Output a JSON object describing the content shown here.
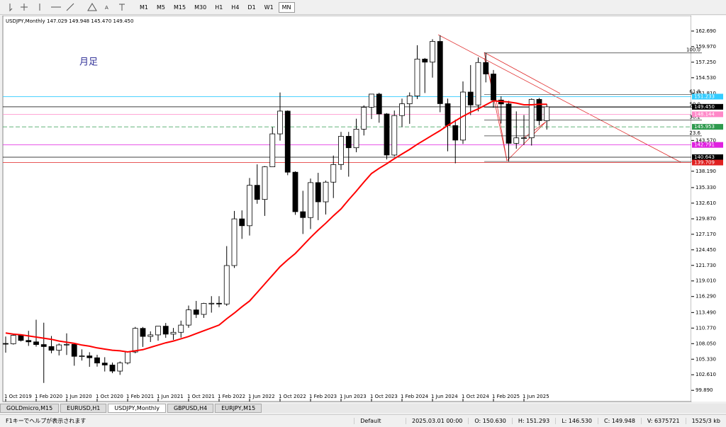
{
  "toolbar": {
    "timeframes": [
      "M1",
      "M5",
      "M15",
      "M30",
      "H1",
      "H4",
      "D1",
      "W1",
      "MN"
    ],
    "active": 8
  },
  "chart_data": {
    "type": "candlestick",
    "title": "USDJPY,Monthly",
    "header_values": "147.029 149.948 145.470 149.450",
    "annotation": "月足",
    "categories": [
      "1 Oct 2019",
      null,
      null,
      null,
      "1 Feb 2020",
      null,
      null,
      null,
      "1 Jun 2020",
      null,
      null,
      null,
      "1 Oct 2020",
      null,
      null,
      null,
      "1 Feb 2021",
      null,
      null,
      null,
      "1 Jun 2021",
      null,
      null,
      null,
      "1 Oct 2021",
      null,
      null,
      null,
      "1 Feb 2022",
      null,
      null,
      null,
      "1 Jun 2022",
      null,
      null,
      null,
      "1 Oct 2022",
      null,
      null,
      null,
      "1 Feb 2023",
      null,
      null,
      null,
      "1 Jun 2023",
      null,
      null,
      null,
      "1 Oct 2023",
      null,
      null,
      null,
      "1 Feb 2024",
      null,
      null,
      null,
      "1 Jun 2024",
      null,
      null,
      null,
      "1 Oct 2024",
      null,
      null,
      null,
      "1 Feb 2025",
      null,
      null,
      null,
      "1 Jun 2025",
      null,
      null,
      null
    ],
    "open": [
      108.08,
      108.03,
      109.5,
      108.61,
      108.36,
      107.89,
      107.54,
      106.89,
      107.83,
      107.93,
      105.83,
      105.91,
      105.58,
      104.66,
      104.31,
      103.25,
      104.68,
      106.59,
      110.72,
      109.31,
      109.58,
      111.1,
      109.71,
      110.03,
      111.29,
      113.95,
      113.16,
      115.08,
      115.11,
      114.98,
      121.7,
      129.86,
      128.66,
      135.73,
      133.26,
      138.96,
      144.72,
      148.7,
      138.02,
      131.11,
      130.09,
      136.2,
      132.84,
      136.28,
      139.35,
      144.3,
      142.29,
      145.54,
      149.37,
      151.67,
      148.2,
      141.02,
      147.92,
      149.98,
      151.35,
      157.8,
      157.26,
      160.88,
      150.0,
      146.17,
      143.63,
      152.03,
      149.77,
      157.2,
      155.19,
      150.63,
      149.95,
      143.07,
      144.02,
      144.03,
      150.75,
      147.03
    ],
    "high": [
      109.29,
      109.73,
      109.7,
      110.29,
      112.23,
      111.71,
      109.38,
      108.08,
      109.85,
      107.96,
      107.05,
      106.55,
      106.11,
      105.68,
      104.74,
      104.94,
      106.69,
      110.97,
      110.97,
      110.2,
      111.12,
      111.66,
      110.8,
      112.07,
      114.7,
      115.52,
      115.19,
      116.35,
      116.34,
      125.1,
      131.25,
      131.35,
      137.0,
      139.39,
      139.08,
      145.9,
      151.95,
      148.82,
      138.18,
      134.77,
      136.91,
      137.91,
      136.56,
      140.93,
      145.07,
      145.07,
      147.37,
      149.71,
      151.72,
      151.91,
      148.35,
      148.8,
      150.89,
      151.97,
      160.22,
      157.99,
      161.27,
      161.95,
      150.89,
      147.21,
      153.88,
      156.75,
      158.08,
      158.87,
      155.89,
      151.29,
      150.49,
      148.65,
      148.03,
      150.92,
      151.0,
      149.95
    ],
    "low": [
      106.48,
      107.89,
      108.43,
      107.65,
      107.52,
      101.18,
      106.36,
      105.99,
      106.07,
      104.19,
      105.1,
      104.0,
      104.03,
      103.18,
      102.88,
      102.59,
      104.41,
      106.36,
      107.48,
      108.34,
      108.57,
      109.06,
      108.72,
      109.11,
      110.82,
      112.53,
      112.56,
      113.47,
      114.41,
      114.65,
      121.28,
      126.36,
      126.94,
      132.5,
      130.39,
      138.93,
      143.53,
      137.5,
      130.57,
      127.22,
      128.08,
      129.64,
      130.63,
      133.5,
      138.43,
      137.24,
      141.51,
      144.44,
      147.31,
      146.67,
      140.25,
      140.8,
      145.9,
      146.48,
      150.81,
      151.86,
      154.55,
      148.51,
      141.68,
      139.58,
      142.97,
      148.01,
      148.65,
      153.72,
      149.3,
      146.53,
      139.89,
      142.12,
      142.8,
      142.68,
      146.22,
      145.47
    ],
    "close": [
      108.03,
      109.5,
      108.61,
      108.36,
      107.89,
      107.54,
      106.89,
      107.83,
      107.93,
      105.83,
      105.91,
      105.58,
      104.66,
      104.31,
      103.25,
      104.68,
      106.59,
      110.72,
      109.31,
      109.58,
      111.1,
      109.71,
      110.03,
      111.29,
      113.95,
      113.16,
      115.08,
      115.11,
      114.98,
      121.7,
      129.86,
      128.66,
      135.73,
      133.26,
      138.96,
      144.72,
      148.7,
      138.02,
      131.11,
      130.09,
      136.2,
      132.84,
      136.28,
      139.35,
      144.3,
      142.29,
      145.54,
      149.37,
      151.67,
      148.2,
      141.02,
      147.92,
      149.98,
      151.35,
      157.8,
      157.26,
      160.88,
      150.0,
      146.17,
      143.63,
      152.03,
      149.77,
      157.2,
      155.19,
      150.63,
      149.95,
      143.07,
      144.02,
      144.03,
      150.75,
      147.03,
      149.45
    ],
    "ma": {
      "color": "#ff0000",
      "values": [
        109.9,
        109.7,
        109.6,
        109.4,
        109.2,
        109.0,
        108.8,
        108.5,
        108.3,
        108.1,
        107.8,
        107.6,
        107.3,
        107.1,
        106.9,
        106.8,
        106.6,
        106.8,
        107.0,
        107.4,
        107.8,
        108.2,
        108.5,
        108.9,
        109.3,
        109.8,
        110.3,
        110.8,
        111.3,
        112.4,
        113.4,
        114.5,
        115.5,
        117.0,
        118.5,
        120.0,
        121.5,
        122.7,
        123.8,
        125.2,
        126.6,
        127.9,
        129.1,
        130.4,
        131.6,
        133.2,
        134.7,
        136.3,
        137.8,
        138.7,
        139.5,
        140.4,
        141.2,
        142.0,
        142.9,
        143.7,
        144.5,
        145.3,
        146.2,
        147.0,
        147.8,
        148.5,
        149.1,
        149.8,
        150.5,
        150.4,
        150.3,
        150.1,
        149.8,
        149.8,
        149.9,
        149.9
      ]
    },
    "ylim": [
      98.8,
      165.4
    ],
    "yticks": [
      {
        "value": 162.69,
        "label": "162.690"
      },
      {
        "value": 159.97,
        "label": "159.970"
      },
      {
        "value": 157.25,
        "label": "157.250"
      },
      {
        "value": 154.53,
        "label": "154.530"
      },
      {
        "value": 151.81,
        "label": "151.810"
      },
      {
        "value": 143.57,
        "label": "143.570"
      },
      {
        "value": 138.19,
        "label": "138.190"
      },
      {
        "value": 135.33,
        "label": "135.330"
      },
      {
        "value": 132.61,
        "label": "132.610"
      },
      {
        "value": 129.87,
        "label": "129.870"
      },
      {
        "value": 127.17,
        "label": "127.170"
      },
      {
        "value": 124.45,
        "label": "124.450"
      },
      {
        "value": 121.73,
        "label": "121.730"
      },
      {
        "value": 119.01,
        "label": "119.010"
      },
      {
        "value": 116.29,
        "label": "116.290"
      },
      {
        "value": 113.49,
        "label": "113.490"
      },
      {
        "value": 110.77,
        "label": "110.770"
      },
      {
        "value": 108.05,
        "label": "108.050"
      },
      {
        "value": 105.33,
        "label": "105.330"
      },
      {
        "value": 102.61,
        "label": "102.610"
      },
      {
        "value": 99.89,
        "label": "99.890"
      }
    ],
    "price_lines": [
      {
        "value": 151.233,
        "label": "151.233",
        "color": "#33ccff"
      },
      {
        "value": 149.45,
        "label": "149.450",
        "color": "#000000"
      },
      {
        "value": 148.144,
        "label": "148.144",
        "color": "#ff88c8"
      },
      {
        "value": 145.953,
        "label": "145.953",
        "color": "#2e9a4e"
      },
      {
        "value": 142.791,
        "label": "142.791",
        "color": "#e020e0"
      },
      {
        "value": 140.643,
        "label": "140.643",
        "color": "#000000"
      },
      {
        "value": 139.709,
        "label": "139.709",
        "color": "#e02020"
      }
    ],
    "fibo": {
      "high": 158.87,
      "low": 139.89,
      "levels": [
        {
          "value": 100,
          "label": "100.0"
        },
        {
          "value": 61.8,
          "label": "61.8"
        },
        {
          "value": 50,
          "label": "50.0"
        },
        {
          "value": 38.2,
          "label": "38.2"
        },
        {
          "value": 23.6,
          "label": "23.6"
        },
        {
          "value": 0,
          "label": "0.0"
        }
      ]
    }
  },
  "tabs": {
    "items": [
      "GOLDmicro,M15",
      "EURUSD,H1",
      "USDJPY,Monthly",
      "GBPUSD,H4",
      "EURJPY,M15"
    ],
    "active": 2
  },
  "status": {
    "help": "F1キーでヘルプが表示されます",
    "profile": "Default",
    "time": "2025.03.01 00:00",
    "open": "O: 150.630",
    "high": "H: 151.293",
    "low": "L: 146.530",
    "close": "C: 149.948",
    "volume": "V: 6375721",
    "traffic": "1525/3 kb"
  }
}
